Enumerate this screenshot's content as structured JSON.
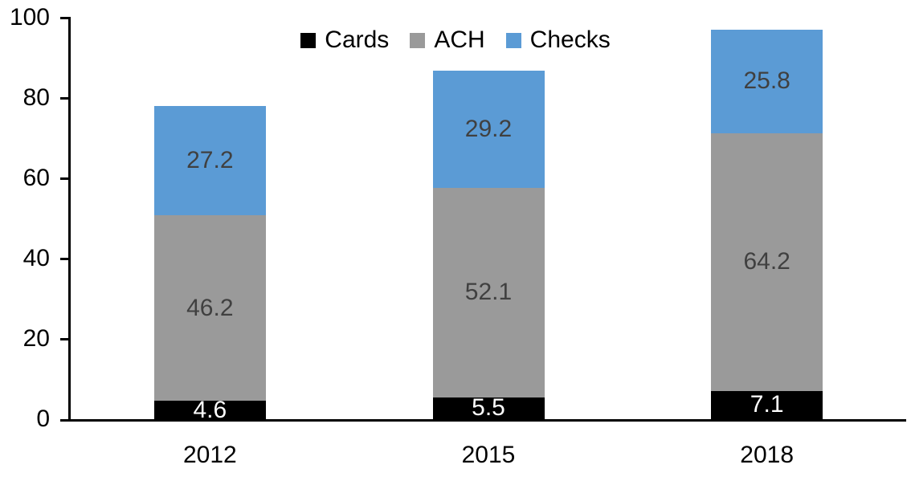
{
  "chart_data": {
    "type": "bar",
    "stacked": true,
    "title": "",
    "xlabel": "",
    "ylabel": "",
    "categories": [
      "2012",
      "2015",
      "2018"
    ],
    "series": [
      {
        "name": "Cards",
        "color": "#000000",
        "label_color": "#FFFFFF",
        "values": [
          4.6,
          5.5,
          7.1
        ]
      },
      {
        "name": "ACH",
        "color": "#9A9A9A",
        "label_color": "#404040",
        "values": [
          46.2,
          52.1,
          64.2
        ]
      },
      {
        "name": "Checks",
        "color": "#5B9BD5",
        "label_color": "#404040",
        "values": [
          27.2,
          29.2,
          25.8
        ]
      }
    ],
    "ylim": [
      0,
      100
    ],
    "yticks": [
      0,
      20,
      40,
      60,
      80,
      100
    ],
    "legend_entries": [
      "Cards",
      "ACH",
      "Checks"
    ],
    "legend_position": "top-center",
    "grid": false,
    "axis_color": "#000000",
    "background": "#FFFFFF"
  }
}
